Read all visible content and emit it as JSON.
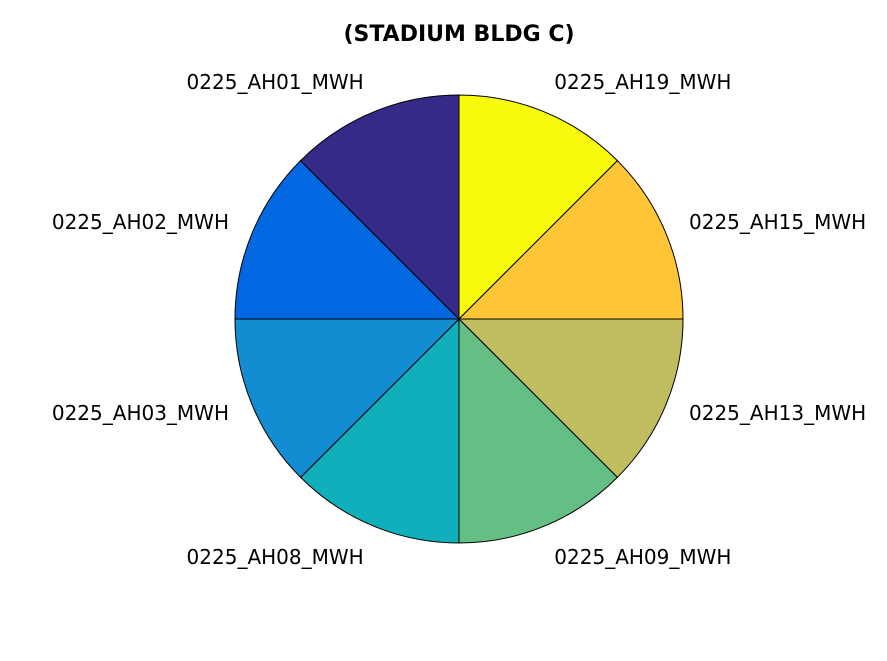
{
  "chart_data": {
    "type": "pie",
    "title": "(STADIUM BLDG C)",
    "labels": [
      "0225_AH19_MWH",
      "0225_AH15_MWH",
      "0225_AH13_MWH",
      "0225_AH09_MWH",
      "0225_AH08_MWH",
      "0225_AH03_MWH",
      "0225_AH02_MWH",
      "0225_AH01_MWH"
    ],
    "values": [
      1,
      1,
      1,
      1,
      1,
      1,
      1,
      1
    ],
    "colors": [
      "#f8fa0d",
      "#fec537",
      "#c0bc60",
      "#64bf85",
      "#11aebb",
      "#138dd2",
      "#0268e1",
      "#352a87"
    ],
    "start_angle_deg": 90,
    "direction": "clockwise",
    "legend": "none"
  }
}
